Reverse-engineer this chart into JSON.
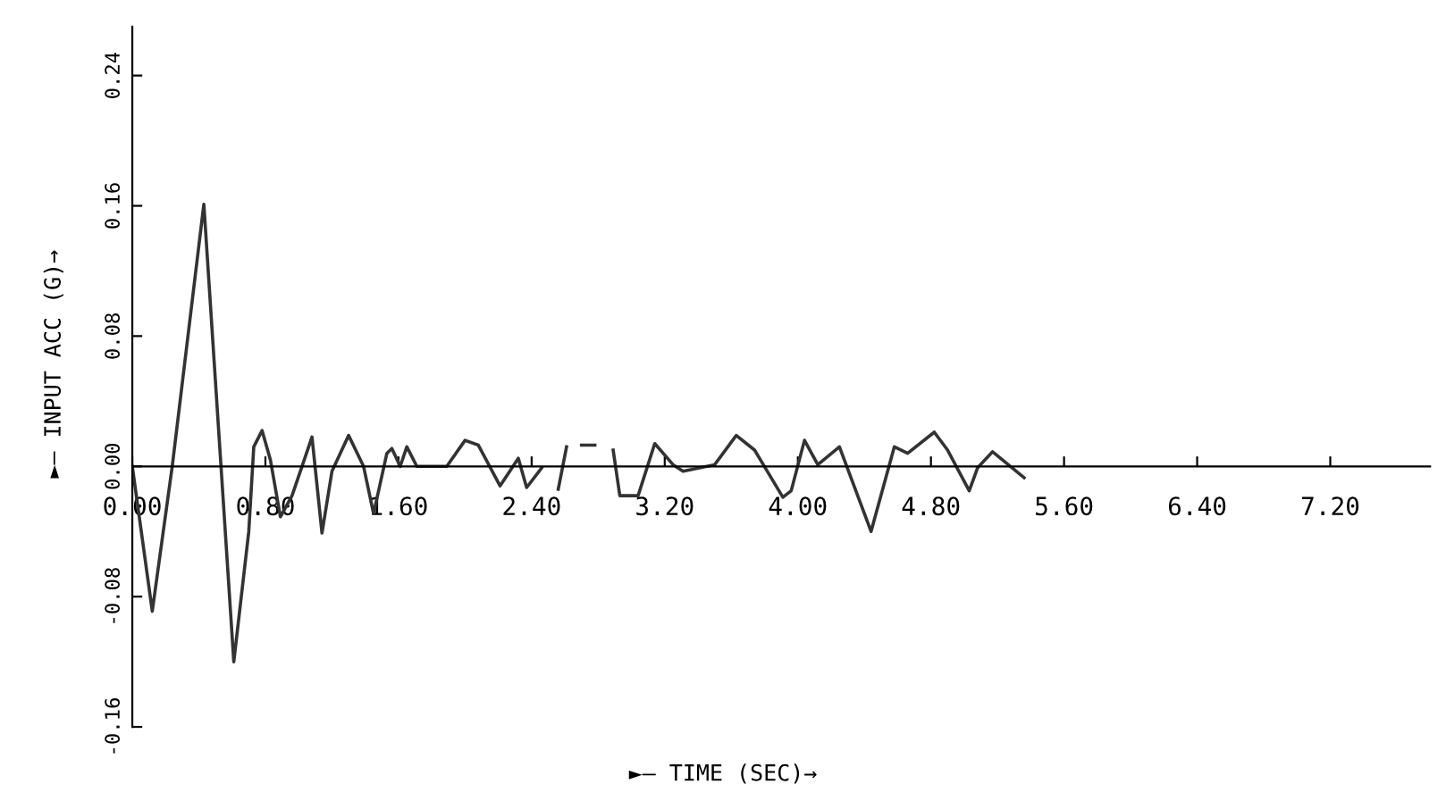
{
  "chart_data": {
    "type": "line",
    "xlabel": "►— TIME (SEC)→",
    "ylabel": "►— INPUT ACC (G)→",
    "x": [
      0,
      0.12,
      0.24,
      0.43,
      0.61,
      0.7,
      0.73,
      0.78,
      0.83,
      0.89,
      0.96,
      1.08,
      1.14,
      1.2,
      1.3,
      1.39,
      1.45,
      1.53,
      1.56,
      1.61,
      1.65,
      1.71,
      1.89,
      2.0,
      2.08,
      2.21,
      2.32,
      2.37,
      2.46,
      2.51,
      2.56,
      2.61,
      2.65,
      2.7,
      2.78,
      2.84,
      2.89,
      2.93,
      3.04,
      3.14,
      3.25,
      3.31,
      3.5,
      3.63,
      3.74,
      3.91,
      3.96,
      4.04,
      4.12,
      4.25,
      4.44,
      4.58,
      4.66,
      4.82,
      4.9,
      5.03,
      5.08,
      5.17,
      5.36
    ],
    "series": [
      {
        "color": "#333333",
        "values": [
          0,
          -0.089,
          0,
          0.161,
          -0.12,
          -0.04,
          0.012,
          0.022,
          0.004,
          -0.031,
          -0.018,
          0.018,
          -0.041,
          -0.003,
          0.019,
          0,
          -0.029,
          0.008,
          0.011,
          0,
          0.012,
          0,
          0,
          0.016,
          0.013,
          -0.012,
          0.005,
          -0.013,
          -0.001,
          null,
          -0.014,
          0.012,
          null,
          0.013,
          0.013,
          null,
          0.01,
          -0.018,
          -0.018,
          0.014,
          0.001,
          -0.003,
          0.001,
          0.019,
          0.01,
          -0.019,
          -0.015,
          0.016,
          0.001,
          0.012,
          -0.04,
          0.012,
          0.008,
          0.021,
          0.01,
          -0.015,
          -0.001,
          0.009,
          -0.007
        ]
      }
    ],
    "xlim": [
      0,
      7.8
    ],
    "ylim": [
      -0.16,
      0.27
    ],
    "xticks": [
      {
        "value": 0,
        "label": "0.00"
      },
      {
        "value": 0.8,
        "label": "0.80"
      },
      {
        "value": 1.6,
        "label": "1.60"
      },
      {
        "value": 2.4,
        "label": "2.40"
      },
      {
        "value": 3.2,
        "label": "3.20"
      },
      {
        "value": 4.0,
        "label": "4.00"
      },
      {
        "value": 4.8,
        "label": "4.80"
      },
      {
        "value": 5.6,
        "label": "5.60"
      },
      {
        "value": 6.4,
        "label": "6.40"
      },
      {
        "value": 7.2,
        "label": "7.20"
      }
    ],
    "yticks": [
      {
        "value": -0.16,
        "label": "-0.16"
      },
      {
        "value": -0.08,
        "label": "-0.08"
      },
      {
        "value": 0,
        "label": "0.00"
      },
      0.08,
      0.16,
      0.24
    ],
    "grid": false,
    "legend": false,
    "marker": "none",
    "line_style": "solid"
  }
}
